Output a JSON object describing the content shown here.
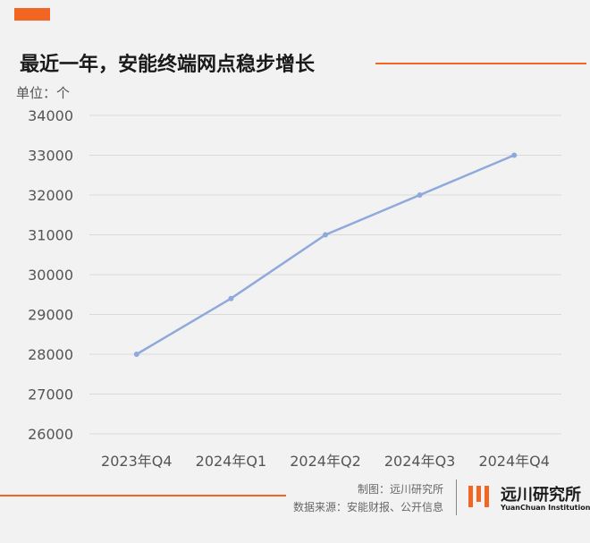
{
  "colors": {
    "accent": "#f26522",
    "line": "#8fa9dc",
    "grid": "#d9d9d9",
    "text": "#555555"
  },
  "header": {
    "title": "最近一年，安能终端网点稳步增长",
    "unit_label": "单位：个"
  },
  "chart_data": {
    "type": "line",
    "title": "最近一年，安能终端网点稳步增长",
    "ylabel": "单位：个",
    "xlabel": "",
    "categories": [
      "2023年Q4",
      "2024年Q1",
      "2024年Q2",
      "2024年Q3",
      "2024年Q4"
    ],
    "series": [
      {
        "values": [
          28000,
          29400,
          31000,
          32000,
          33000
        ]
      }
    ],
    "ylim": [
      26000,
      34000
    ],
    "yticks": [
      26000,
      27000,
      28000,
      29000,
      30000,
      31000,
      32000,
      33000,
      34000
    ],
    "grid": true,
    "legend": "none"
  },
  "footer": {
    "credit_line1": "制图：远川研究所",
    "credit_line2": "数据来源：安能财报、公开信息",
    "logo_name_cn": "远川研究所",
    "logo_name_en": "YuanChuan Institution"
  }
}
